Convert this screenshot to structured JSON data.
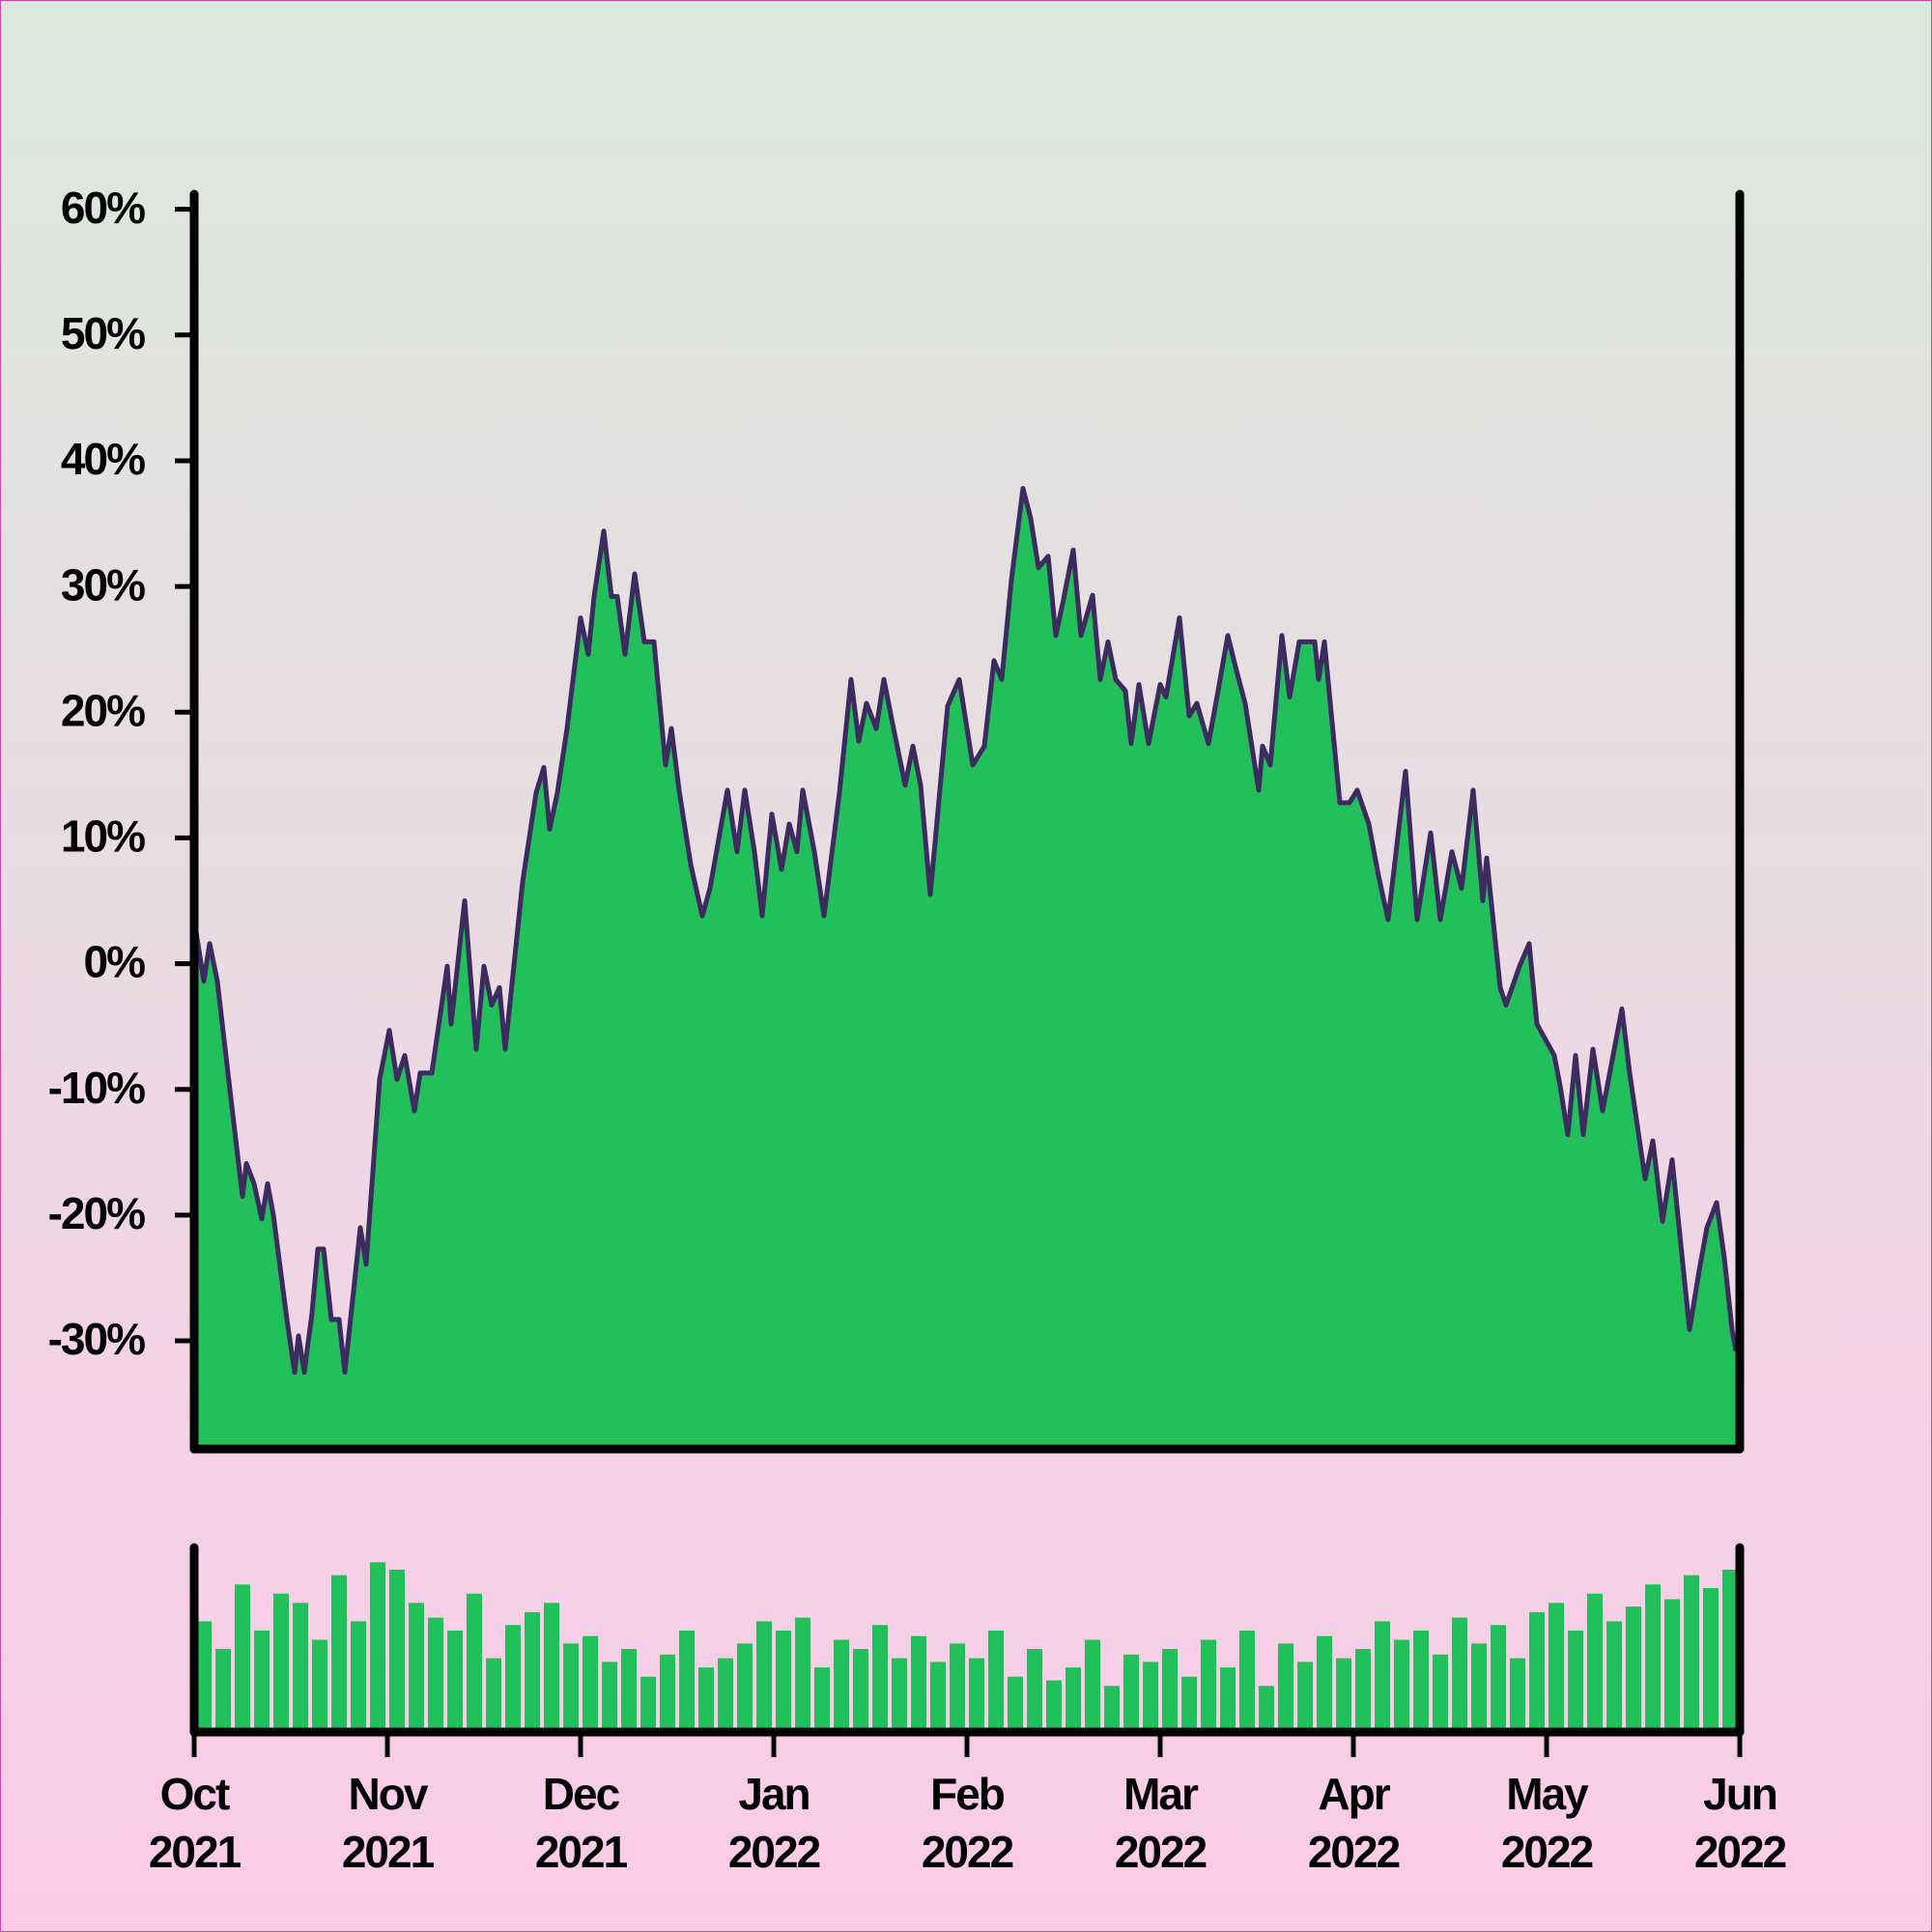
{
  "chart_data": [
    {
      "type": "area",
      "color": "#22c05a",
      "line_color": "#3b2b5e",
      "xlim": [
        0,
        8
      ],
      "xticks": [
        {
          "value": 0,
          "label": "Oct\n2021"
        },
        {
          "value": 1,
          "label": "Nov\n2021"
        },
        {
          "value": 2,
          "label": "Dec\n2021"
        },
        {
          "value": 3,
          "label": "Jan\n2022"
        },
        {
          "value": 4,
          "label": "Feb\n2022"
        },
        {
          "value": 5,
          "label": "Mar\n2022"
        },
        {
          "value": 6,
          "label": "Apr\n2022"
        },
        {
          "value": 7,
          "label": "May\n2022"
        },
        {
          "value": 8,
          "label": "Jun\n2022"
        }
      ],
      "ylim": [
        -38.6,
        61.2
      ],
      "yticks": [
        {
          "value": -30,
          "label": "-30%"
        },
        {
          "value": -20,
          "label": "-20%"
        },
        {
          "value": -10,
          "label": "-10%"
        },
        {
          "value": 0,
          "label": "0%"
        },
        {
          "value": 10,
          "label": "10%"
        },
        {
          "value": 20,
          "label": "20%"
        },
        {
          "value": 30,
          "label": "30%"
        },
        {
          "value": 40,
          "label": "40%"
        },
        {
          "value": 50,
          "label": "50%"
        },
        {
          "value": 60,
          "label": "60%"
        }
      ],
      "x": [
        0,
        0.05,
        0.08,
        0.12,
        0.19,
        0.25,
        0.27,
        0.31,
        0.35,
        0.38,
        0.41,
        0.48,
        0.52,
        0.54,
        0.57,
        0.61,
        0.64,
        0.67,
        0.71,
        0.75,
        0.78,
        0.86,
        0.89,
        0.96,
        1.01,
        1.05,
        1.09,
        1.14,
        1.17,
        1.23,
        1.31,
        1.33,
        1.4,
        1.46,
        1.5,
        1.54,
        1.58,
        1.61,
        1.7,
        1.77,
        1.81,
        1.84,
        1.88,
        1.93,
        2.0,
        2.04,
        2.07,
        2.12,
        2.16,
        2.19,
        2.23,
        2.28,
        2.33,
        2.38,
        2.44,
        2.47,
        2.51,
        2.57,
        2.63,
        2.67,
        2.76,
        2.81,
        2.85,
        2.9,
        2.94,
        2.99,
        3.04,
        3.08,
        3.12,
        3.15,
        3.21,
        3.26,
        3.31,
        3.34,
        3.4,
        3.44,
        3.48,
        3.53,
        3.57,
        3.62,
        3.68,
        3.72,
        3.76,
        3.81,
        3.9,
        3.96,
        4.03,
        4.09,
        4.14,
        4.18,
        4.23,
        4.29,
        4.33,
        4.37,
        4.42,
        4.46,
        4.5,
        4.55,
        4.59,
        4.65,
        4.69,
        4.73,
        4.77,
        4.82,
        4.85,
        4.89,
        4.94,
        5.0,
        5.03,
        5.1,
        5.15,
        5.19,
        5.25,
        5.3,
        5.35,
        5.39,
        5.44,
        5.51,
        5.53,
        5.57,
        5.63,
        5.67,
        5.72,
        5.8,
        5.82,
        5.85,
        5.93,
        5.98,
        6.02,
        6.08,
        6.13,
        6.18,
        6.27,
        6.33,
        6.4,
        6.45,
        6.51,
        6.56,
        6.62,
        6.67,
        6.69,
        6.76,
        6.79,
        6.86,
        6.91,
        6.95,
        7.04,
        7.07,
        7.11,
        7.15,
        7.19,
        7.24,
        7.29,
        7.39,
        7.43,
        7.51,
        7.55,
        7.6,
        7.65,
        7.74,
        7.79,
        7.83,
        7.88,
        7.92,
        7.96,
        7.98
      ],
      "values": [
        3.5,
        -1.4,
        1.6,
        -1.4,
        -10.7,
        -18.5,
        -15.9,
        -17.5,
        -20.3,
        -17.5,
        -20,
        -28.3,
        -32.5,
        -29.6,
        -32.5,
        -27.8,
        -22.7,
        -22.7,
        -28.3,
        -28.3,
        -32.5,
        -21,
        -23.9,
        -9.2,
        -5.3,
        -9.2,
        -7.3,
        -11.7,
        -8.7,
        -8.7,
        -0.2,
        -4.8,
        5,
        -6.8,
        -0.2,
        -3.3,
        -1.9,
        -6.8,
        6.5,
        13.6,
        15.6,
        10.7,
        13.6,
        18.7,
        27.5,
        24.6,
        29.2,
        34.4,
        29.2,
        29.2,
        24.6,
        31,
        25.6,
        25.6,
        15.8,
        18.7,
        13.8,
        7.9,
        3.8,
        6,
        13.8,
        8.9,
        13.8,
        8.9,
        3.8,
        11.9,
        7.5,
        11.1,
        8.9,
        13.8,
        8.9,
        3.8,
        9.9,
        13.6,
        22.6,
        17.7,
        20.7,
        18.7,
        22.6,
        18.7,
        14.2,
        17.3,
        14.2,
        5.5,
        20.5,
        22.6,
        15.8,
        17.3,
        24.1,
        22.6,
        30.5,
        37.8,
        35.4,
        31.5,
        32.4,
        26.1,
        29,
        32.9,
        26.1,
        29.3,
        22.6,
        25.6,
        22.6,
        21.7,
        17.5,
        22.2,
        17.5,
        22.2,
        21.2,
        27.5,
        19.7,
        20.7,
        17.5,
        21.7,
        26.1,
        23.6,
        20.7,
        13.8,
        17.3,
        15.8,
        26.1,
        21.2,
        25.6,
        25.6,
        22.6,
        25.6,
        12.8,
        12.8,
        13.8,
        11.1,
        7,
        3.5,
        15.3,
        3.5,
        10.4,
        3.5,
        8.9,
        6,
        13.8,
        5,
        8.4,
        -1.9,
        -3.3,
        -0.2,
        1.6,
        -4.8,
        -7.3,
        -9.7,
        -13.6,
        -7.3,
        -13.6,
        -6.8,
        -11.7,
        -3.6,
        -8.7,
        -17.1,
        -14.1,
        -20.5,
        -15.6,
        -29.1,
        -24.4,
        -21,
        -19,
        -23.4,
        -29.1,
        -30.8
      ]
    },
    {
      "type": "bar",
      "color": "#22c05a",
      "xlim": [
        0,
        8
      ],
      "ylim": [
        0,
        100
      ],
      "x": [
        0.05,
        0.15,
        0.25,
        0.35,
        0.45,
        0.55,
        0.65,
        0.75,
        0.85,
        0.95,
        1.05,
        1.15,
        1.25,
        1.35,
        1.45,
        1.55,
        1.65,
        1.75,
        1.85,
        1.95,
        2.05,
        2.15,
        2.25,
        2.35,
        2.45,
        2.55,
        2.65,
        2.75,
        2.85,
        2.95,
        3.05,
        3.15,
        3.25,
        3.35,
        3.45,
        3.55,
        3.65,
        3.75,
        3.85,
        3.95,
        4.05,
        4.15,
        4.25,
        4.35,
        4.45,
        4.55,
        4.65,
        4.75,
        4.85,
        4.95,
        5.05,
        5.15,
        5.25,
        5.35,
        5.45,
        5.55,
        5.65,
        5.75,
        5.85,
        5.95,
        6.05,
        6.15,
        6.25,
        6.35,
        6.45,
        6.55,
        6.65,
        6.75,
        6.85,
        6.95,
        7.05,
        7.15,
        7.25,
        7.35,
        7.45,
        7.55,
        7.65,
        7.75,
        7.85,
        7.95
      ],
      "values": [
        60,
        45,
        80,
        55,
        75,
        70,
        50,
        85,
        60,
        92,
        88,
        70,
        62,
        55,
        75,
        40,
        58,
        65,
        70,
        48,
        52,
        38,
        45,
        30,
        42,
        55,
        35,
        40,
        48,
        60,
        55,
        62,
        35,
        50,
        45,
        58,
        40,
        52,
        38,
        48,
        40,
        55,
        30,
        45,
        28,
        35,
        50,
        25,
        42,
        38,
        45,
        30,
        50,
        35,
        55,
        25,
        48,
        38,
        52,
        40,
        45,
        60,
        50,
        55,
        42,
        62,
        48,
        58,
        40,
        65,
        70,
        55,
        75,
        60,
        68,
        80,
        72,
        85,
        78,
        88
      ]
    }
  ]
}
